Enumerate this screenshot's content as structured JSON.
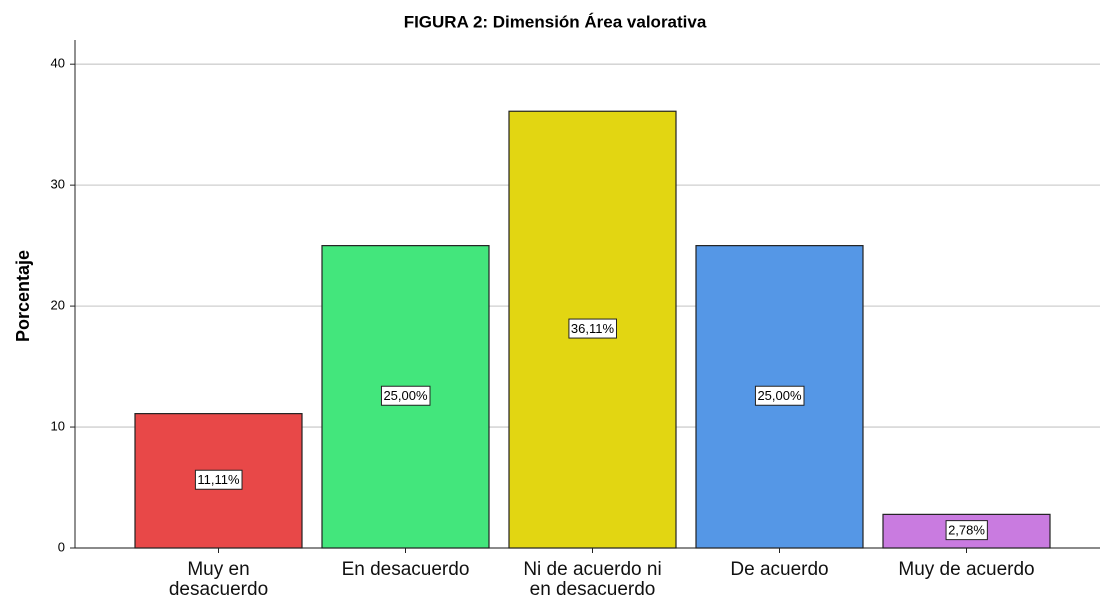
{
  "chart_data": {
    "type": "bar",
    "title": "FIGURA 2: Dimensión Área valorativa",
    "y_label": "Porcentaje",
    "categories": [
      "Muy en\ndesacuerdo",
      "En desacuerdo",
      "Ni de acuerdo ni\nen desacuerdo",
      "De acuerdo",
      "Muy de acuerdo"
    ],
    "values": [
      11.11,
      25,
      36.11,
      25,
      2.78
    ],
    "value_labels": [
      "11,11%",
      "25,00%",
      "36,11%",
      "25,00%",
      "2,78%"
    ],
    "colors": [
      "#e84848",
      "#43e67c",
      "#e2d612",
      "#5597e6",
      "#c97be0"
    ],
    "ylim": [
      0,
      42
    ],
    "yticks": [
      0,
      10,
      20,
      30,
      40
    ],
    "grid": true
  }
}
